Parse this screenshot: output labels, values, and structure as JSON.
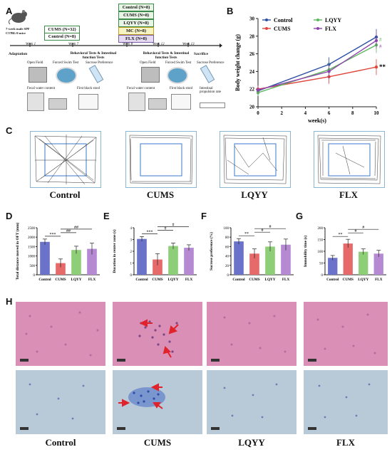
{
  "panels": {
    "A": "A",
    "B": "B",
    "C": "C",
    "D": "D",
    "E": "E",
    "F": "F",
    "G": "G",
    "H": "H"
  },
  "panelA": {
    "mouse_label": "7-week male SPF C57BL/6 mice",
    "group_box_1": "CUMS (N=32)",
    "group_box_2": "Control (N=8)",
    "stacked_boxes": [
      "Control (N=8)",
      "CUMS (N=8)",
      "LQYY (N=8)",
      "MC (N=8)",
      "FLX (N=8)"
    ],
    "week_labels": [
      "Week 1",
      "Week 7",
      "Week 8",
      "Week 12",
      "Week 13"
    ],
    "adaptation": "Adaptation",
    "tests_1": "Behavioral Tests & Intestinal function Tests",
    "tests_2": "Behavioral Tests & Intestinal function Tests",
    "sacrifice": "Sacrifice",
    "icons_1": [
      "Open Field",
      "Forced Swim Test",
      "Sucrose Preference"
    ],
    "icons_1b": [
      "Fecal water content",
      "First black stool"
    ],
    "icons_2": [
      "Open Field",
      "Forced Swim Test",
      "Sucrose Preference"
    ],
    "icons_2b": [
      "Fecal water content",
      "First black stool",
      "Intestinal propulsion rate"
    ]
  },
  "chart_B": {
    "chart_data": {
      "type": "line",
      "x": [
        0,
        6,
        10
      ],
      "xlabel": "week(s)",
      "ylabel": "Body weight change (g)",
      "xlim": [
        0,
        10
      ],
      "ylim": [
        20,
        30
      ],
      "xticks": [
        "0",
        "2",
        "4",
        "6",
        "8",
        "10"
      ],
      "yticks": [
        "20",
        "22",
        "24",
        "26",
        "28",
        "30"
      ],
      "series": [
        {
          "name": "Control",
          "color": "#2c4fa3",
          "values": [
            21.8,
            24.8,
            27.9
          ],
          "err": [
            0.4,
            0.8,
            0.9
          ]
        },
        {
          "name": "CUMS",
          "color": "#e0453c",
          "values": [
            22.0,
            23.4,
            24.5
          ],
          "err": [
            0.4,
            0.8,
            0.9
          ]
        },
        {
          "name": "LQYY",
          "color": "#5cb85c",
          "values": [
            21.6,
            24.2,
            27.0
          ],
          "err": [
            0.4,
            0.8,
            0.9
          ]
        },
        {
          "name": "FLX",
          "color": "#8e44ad",
          "values": [
            21.9,
            24.0,
            27.5
          ],
          "err": [
            0.4,
            0.8,
            0.9
          ]
        }
      ],
      "annotations": [
        "#",
        "#",
        "**"
      ]
    }
  },
  "panelC": {
    "groups": [
      "Control",
      "CUMS",
      "LQYY",
      "FLX"
    ]
  },
  "bars": [
    {
      "chart_data": {
        "type": "bar",
        "categories": [
          "Control",
          "CUMS",
          "LQYY",
          "FLX"
        ],
        "values": [
          1750,
          620,
          1320,
          1380
        ],
        "err": [
          150,
          220,
          200,
          300
        ],
        "ylabel": "Total distance moved in OFT (mm)",
        "ylim": [
          0,
          2500
        ],
        "yticks": [
          "0",
          "500",
          "1000",
          "1500",
          "2000",
          "2500"
        ],
        "colors": [
          "#6b72c9",
          "#e66a6a",
          "#8fce79",
          "#b58ad2"
        ],
        "sig": [
          {
            "from": 0,
            "to": 1,
            "text": "***"
          },
          {
            "from": 1,
            "to": 2,
            "text": "##"
          },
          {
            "from": 1,
            "to": 3,
            "text": "##"
          }
        ]
      }
    },
    {
      "chart_data": {
        "type": "bar",
        "categories": [
          "Control",
          "CUMS",
          "LQYY",
          "FLX"
        ],
        "values": [
          3.05,
          1.3,
          2.45,
          2.3
        ],
        "err": [
          0.2,
          0.5,
          0.25,
          0.25
        ],
        "ylabel": "Duration in center zone (s)",
        "ylim": [
          0,
          4
        ],
        "yticks": [
          "0",
          "1",
          "2",
          "3",
          "4"
        ],
        "colors": [
          "#6b72c9",
          "#e66a6a",
          "#8fce79",
          "#b58ad2"
        ],
        "sig": [
          {
            "from": 0,
            "to": 1,
            "text": "***"
          },
          {
            "from": 1,
            "to": 2,
            "text": "#"
          },
          {
            "from": 1,
            "to": 3,
            "text": "#"
          }
        ]
      }
    },
    {
      "chart_data": {
        "type": "bar",
        "categories": [
          "Control",
          "CUMS",
          "LQYY",
          "FLX"
        ],
        "values": [
          71,
          45,
          60,
          64
        ],
        "err": [
          6,
          10,
          10,
          12
        ],
        "ylabel": "Sucrose preference (%)",
        "ylim": [
          0,
          100
        ],
        "yticks": [
          "0",
          "20",
          "40",
          "60",
          "80",
          "100"
        ],
        "colors": [
          "#6b72c9",
          "#e66a6a",
          "#8fce79",
          "#b58ad2"
        ],
        "sig": [
          {
            "from": 0,
            "to": 1,
            "text": "**"
          },
          {
            "from": 1,
            "to": 2,
            "text": "#"
          },
          {
            "from": 1,
            "to": 3,
            "text": "#"
          }
        ]
      }
    },
    {
      "chart_data": {
        "type": "bar",
        "categories": [
          "Control",
          "CUMS",
          "LQYY",
          "FLX"
        ],
        "values": [
          72,
          133,
          98,
          90
        ],
        "err": [
          10,
          18,
          12,
          14
        ],
        "ylabel": "Immobility time (s)",
        "ylim": [
          0,
          200
        ],
        "yticks": [
          "0",
          "50",
          "100",
          "150",
          "200"
        ],
        "colors": [
          "#6b72c9",
          "#e66a6a",
          "#8fce79",
          "#b58ad2"
        ],
        "sig": [
          {
            "from": 0,
            "to": 1,
            "text": "**"
          },
          {
            "from": 1,
            "to": 2,
            "text": "#"
          },
          {
            "from": 1,
            "to": 3,
            "text": "#"
          }
        ]
      }
    }
  ],
  "panelH": {
    "groups": [
      "Control",
      "CUMS",
      "LQYY",
      "FLX"
    ]
  }
}
